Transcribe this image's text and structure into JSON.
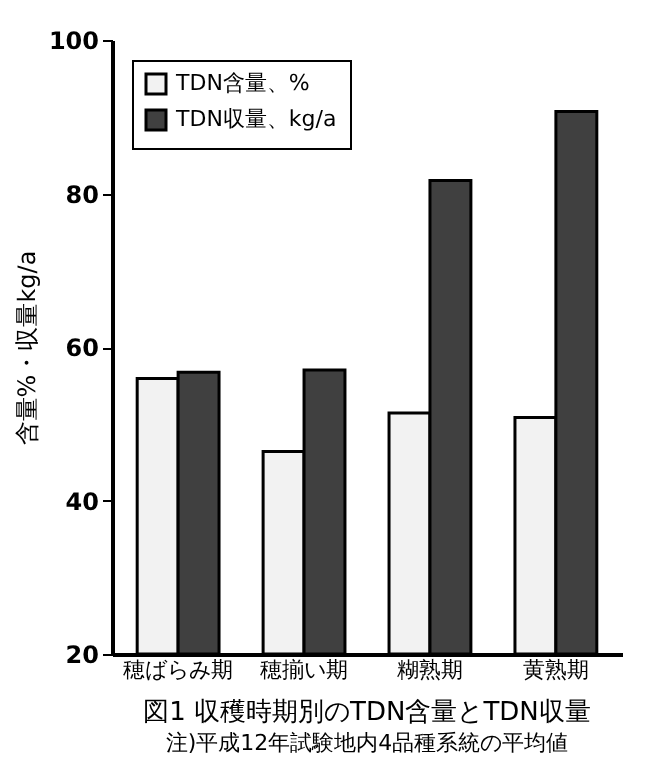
{
  "chart_data": {
    "type": "bar",
    "title": "図1  収穫時期別のTDN含量とTDN収量",
    "subtitle": "注)平成12年試験地内4品種系統の平均値",
    "ylabel": "含量%・収量kg/a",
    "categories": [
      "穂ばらみ期",
      "穂揃い期",
      "糊熟期",
      "黄熟期"
    ],
    "series": [
      {
        "name": "TDN含量、%",
        "color": "#f2f2f2",
        "values": [
          55.9,
          46.4,
          51.4,
          50.8
        ]
      },
      {
        "name": "TDN収量、kg/a",
        "color": "#404040",
        "values": [
          56.7,
          57,
          81.7,
          90.7
        ]
      }
    ],
    "ylim": [
      20,
      100
    ],
    "yticks": [
      20,
      40,
      60,
      80,
      100
    ],
    "grid": false,
    "legend": "top left"
  }
}
